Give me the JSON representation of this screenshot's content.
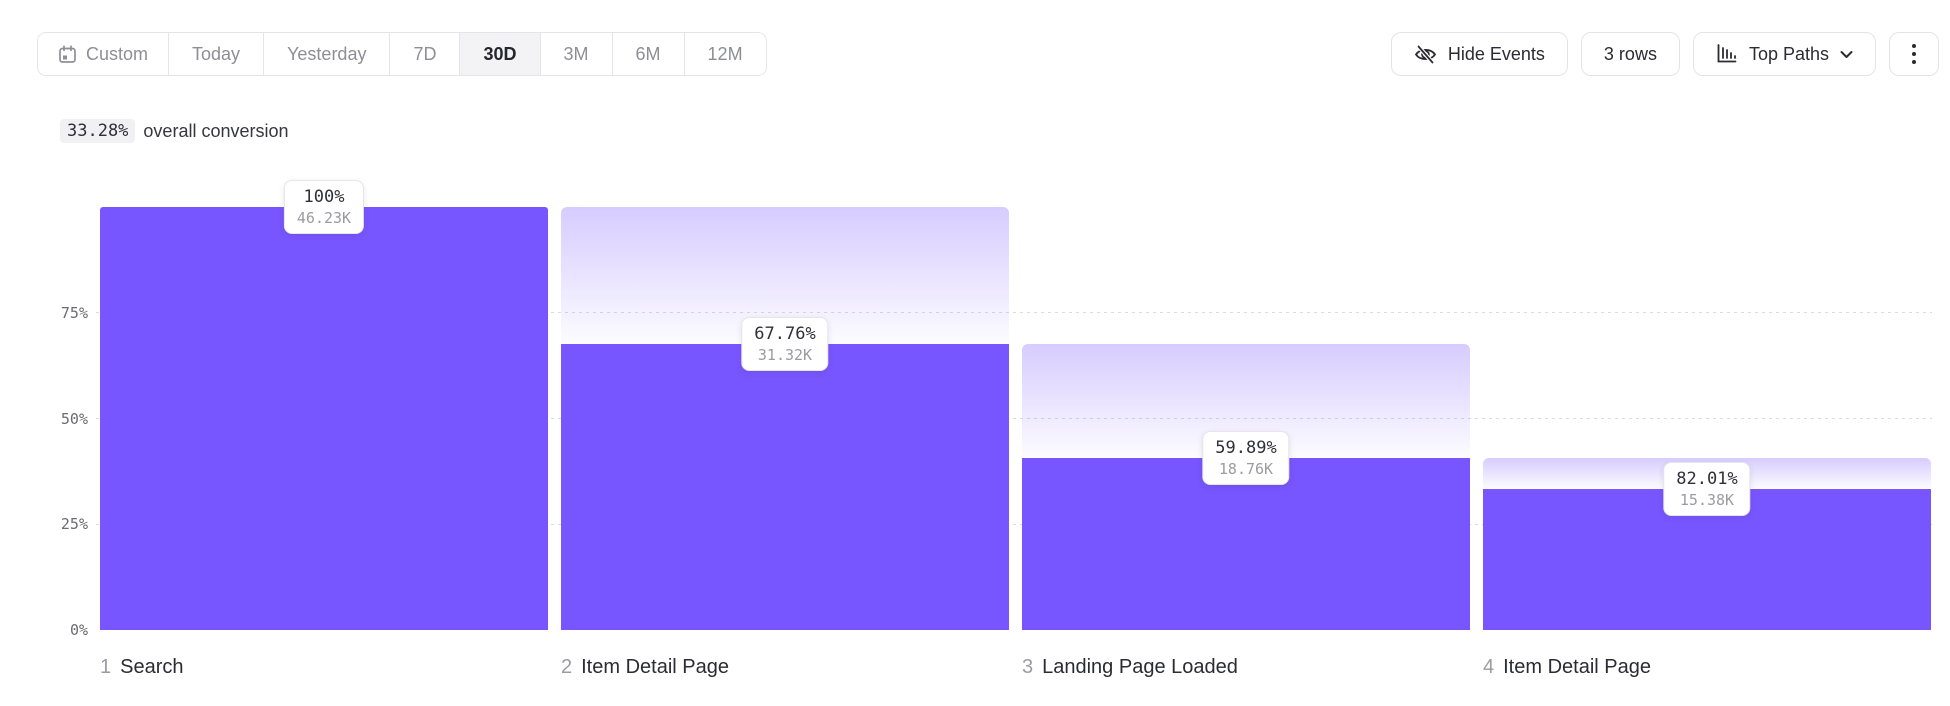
{
  "toolbar": {
    "date_ranges": [
      {
        "label": "Custom",
        "selected": false,
        "icon": "calendar-icon"
      },
      {
        "label": "Today",
        "selected": false
      },
      {
        "label": "Yesterday",
        "selected": false
      },
      {
        "label": "7D",
        "selected": false
      },
      {
        "label": "30D",
        "selected": true
      },
      {
        "label": "3M",
        "selected": false
      },
      {
        "label": "6M",
        "selected": false
      },
      {
        "label": "12M",
        "selected": false
      }
    ],
    "buttons": {
      "hide_events": "Hide Events",
      "rows": "3 rows",
      "top_paths": "Top Paths"
    },
    "icons": {
      "custom_range": "calendar-icon",
      "hide_events": "eye-off-icon",
      "top_paths": "bar-chart-icon",
      "top_paths_caret": "chevron-down-icon",
      "more": "kebab-menu-icon"
    }
  },
  "summary": {
    "value": "33.28%",
    "label": "overall conversion"
  },
  "chart_data": {
    "type": "bar",
    "subtype": "funnel",
    "title": "33.28% overall conversion",
    "categories": [
      "Search",
      "Item Detail Page",
      "Landing Page Loaded",
      "Item Detail Page"
    ],
    "steps": [
      {
        "index": "1",
        "name": "Search",
        "conversion_pct": "100%",
        "count": "46.23K",
        "height_pct": 100
      },
      {
        "index": "2",
        "name": "Item Detail Page",
        "conversion_pct": "67.76%",
        "count": "31.32K",
        "height_pct": 67.7
      },
      {
        "index": "3",
        "name": "Landing Page Loaded",
        "conversion_pct": "59.89%",
        "count": "18.76K",
        "height_pct": 40.6
      },
      {
        "index": "4",
        "name": "Item Detail Page",
        "conversion_pct": "82.01%",
        "count": "15.38K",
        "height_pct": 33.3
      }
    ],
    "yticks": [
      "75%",
      "50%",
      "25%",
      "0%"
    ],
    "ylim": [
      0,
      100
    ],
    "grid": "dashed horizontal lines at 25, 50, 75",
    "legend": "none",
    "bar_color": "#7856FF",
    "dropoff_gradient_top": "#D8CEFB"
  }
}
